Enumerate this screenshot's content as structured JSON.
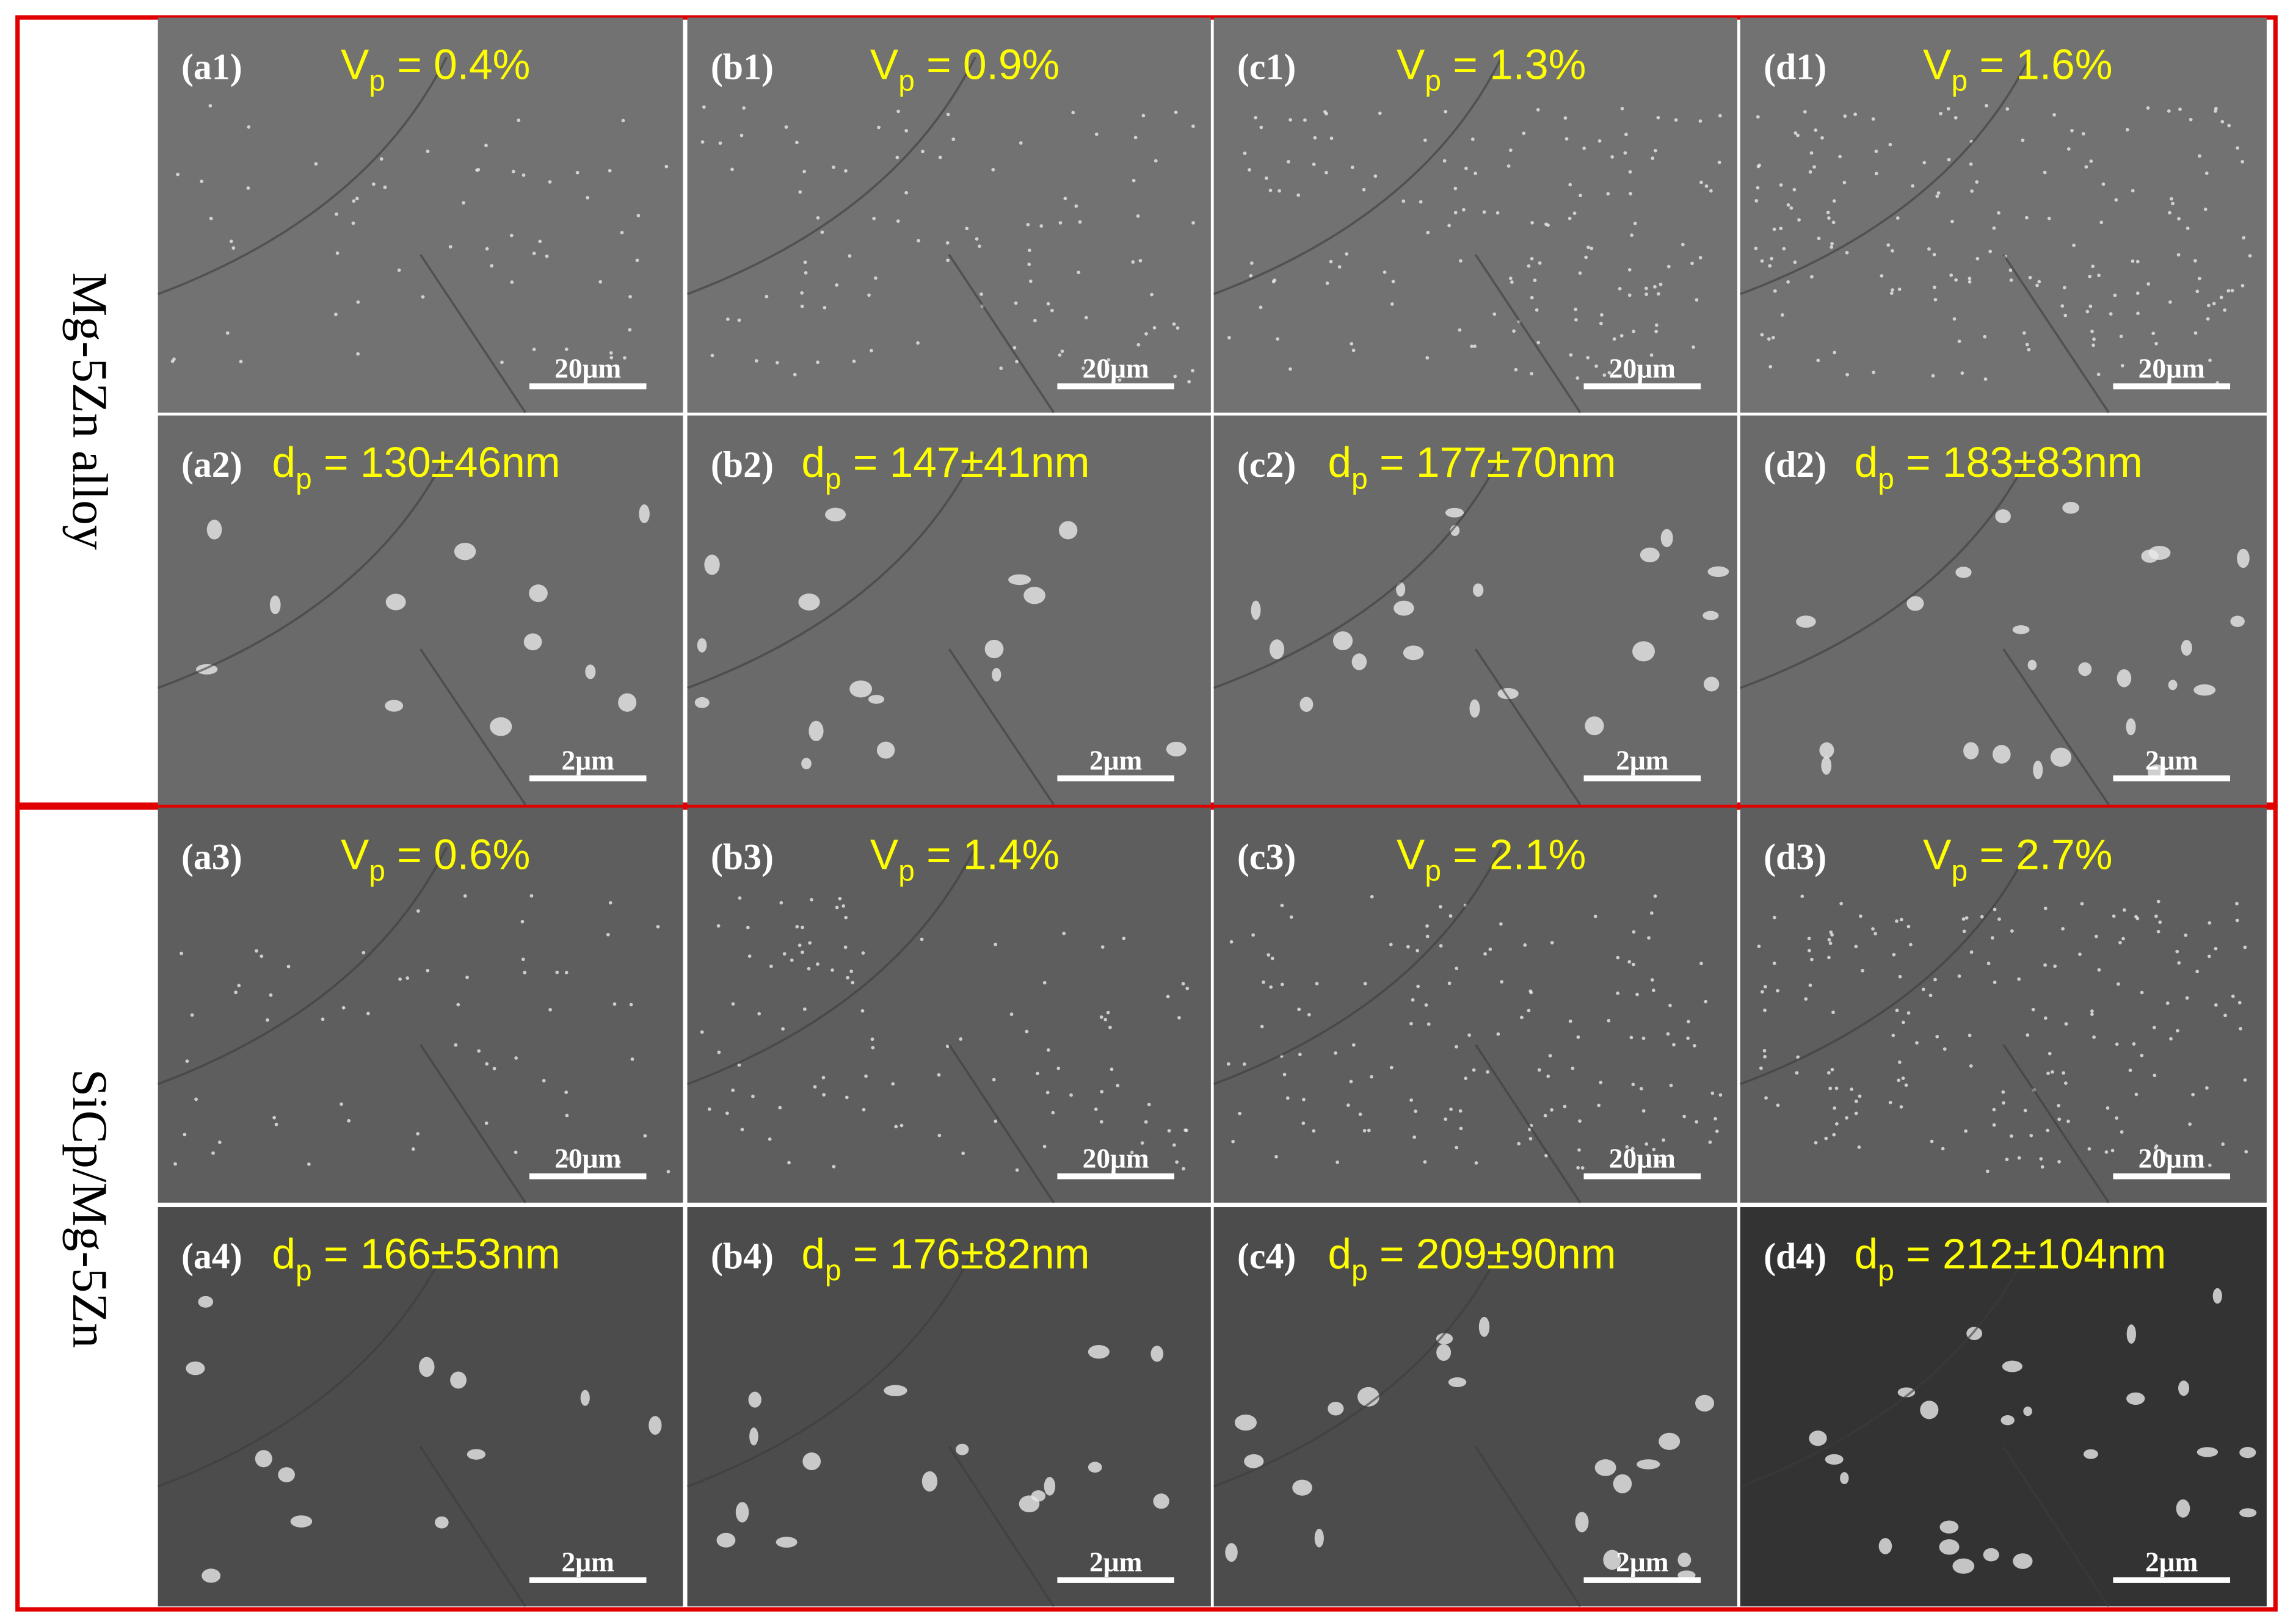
{
  "groups": [
    {
      "label": "Mg-5Zn alloy",
      "rows": [
        [
          {
            "id": "(a1)",
            "symbol": "V",
            "subscript": "p",
            "value": " = 0.4%",
            "scale": "20μm"
          },
          {
            "id": "(b1)",
            "symbol": "V",
            "subscript": "p",
            "value": " = 0.9%",
            "scale": "20μm"
          },
          {
            "id": "(c1)",
            "symbol": "V",
            "subscript": "p",
            "value": " = 1.3%",
            "scale": "20μm"
          },
          {
            "id": "(d1)",
            "symbol": "V",
            "subscript": "p",
            "value": " = 1.6%",
            "scale": "20μm"
          }
        ],
        [
          {
            "id": "(a2)",
            "symbol": "d",
            "subscript": "p",
            "value": " = 130±46nm",
            "scale": "2μm"
          },
          {
            "id": "(b2)",
            "symbol": "d",
            "subscript": "p",
            "value": " = 147±41nm",
            "scale": "2μm"
          },
          {
            "id": "(c2)",
            "symbol": "d",
            "subscript": "p",
            "value": " = 177±70nm",
            "scale": "2μm"
          },
          {
            "id": "(d2)",
            "symbol": "d",
            "subscript": "p",
            "value": " = 183±83nm",
            "scale": "2μm"
          }
        ]
      ]
    },
    {
      "label": "SiCp/Mg-5Zn",
      "rows": [
        [
          {
            "id": "(a3)",
            "symbol": "V",
            "subscript": "p",
            "value": " = 0.6%",
            "scale": "20μm"
          },
          {
            "id": "(b3)",
            "symbol": "V",
            "subscript": "p",
            "value": " = 1.4%",
            "scale": "20μm"
          },
          {
            "id": "(c3)",
            "symbol": "V",
            "subscript": "p",
            "value": " = 2.1%",
            "scale": "20μm"
          },
          {
            "id": "(d3)",
            "symbol": "V",
            "subscript": "p",
            "value": " = 2.7%",
            "scale": "20μm"
          }
        ],
        [
          {
            "id": "(a4)",
            "symbol": "d",
            "subscript": "p",
            "value": " = 166±53nm",
            "scale": "2μm"
          },
          {
            "id": "(b4)",
            "symbol": "d",
            "subscript": "p",
            "value": " = 176±82nm",
            "scale": "2μm"
          },
          {
            "id": "(c4)",
            "symbol": "d",
            "subscript": "p",
            "value": " = 209±90nm",
            "scale": "2μm"
          },
          {
            "id": "(d4)",
            "symbol": "d",
            "subscript": "p",
            "value": " = 212±104nm",
            "scale": "2μm"
          }
        ]
      ]
    }
  ]
}
